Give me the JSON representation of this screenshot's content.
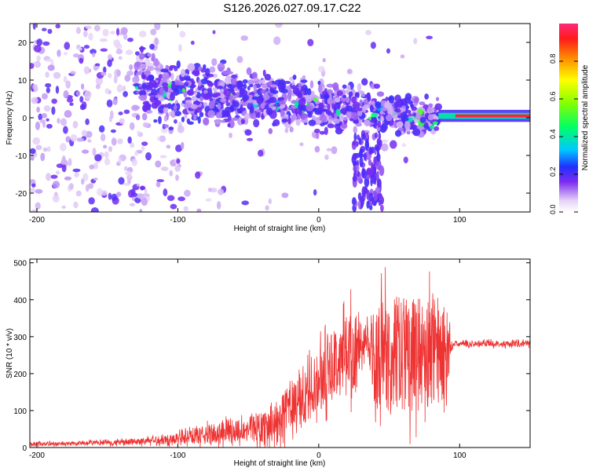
{
  "title": "S126.2026.027.09.17.C22",
  "chart_data": [
    {
      "type": "heatmap",
      "name": "spectrogram",
      "xlabel": "Height of straight line (km)",
      "ylabel": "Frequency (Hz)",
      "xlim": [
        -205,
        150
      ],
      "ylim": [
        -25,
        25
      ],
      "xticks": [
        -200,
        -100,
        0,
        100
      ],
      "yticks": [
        -20,
        -10,
        0,
        10,
        20
      ],
      "colorbar": {
        "label": "Normalized spectral amplitude",
        "range": [
          0,
          1
        ],
        "ticks": [
          0.0,
          0.2,
          0.4,
          0.6,
          0.8
        ]
      },
      "features": [
        {
          "x": [
            -205,
            -130
          ],
          "y": [
            -25,
            25
          ],
          "amplitude": 0.15,
          "description": "diffuse broadband noise"
        },
        {
          "x": [
            -130,
            85
          ],
          "freq_start": 8,
          "freq_end": 0,
          "amplitude": 0.3,
          "description": "drifting band converging to 0 Hz"
        },
        {
          "x": [
            85,
            150
          ],
          "freq": 0.5,
          "amplitude": 0.95,
          "description": "narrow carrier line"
        }
      ]
    },
    {
      "type": "line",
      "name": "snr",
      "xlabel": "Height of straight line (km)",
      "ylabel": "SNR (10 * v/v)",
      "xlim": [
        -205,
        150
      ],
      "ylim": [
        0,
        510
      ],
      "xticks": [
        -200,
        -100,
        0,
        100
      ],
      "yticks": [
        0,
        100,
        200,
        300,
        400,
        500
      ],
      "color": "#ee3333",
      "series": [
        {
          "name": "SNR",
          "x": [
            -205,
            -180,
            -160,
            -140,
            -120,
            -100,
            -90,
            -80,
            -70,
            -60,
            -50,
            -40,
            -30,
            -25,
            -20,
            -15,
            -10,
            -5,
            0,
            5,
            10,
            15,
            20,
            25,
            30,
            35,
            40,
            45,
            50,
            55,
            60,
            65,
            70,
            75,
            80,
            85,
            90,
            95,
            100,
            110,
            120,
            130,
            140,
            150
          ],
          "y": [
            10,
            10,
            12,
            14,
            18,
            25,
            30,
            35,
            40,
            45,
            50,
            55,
            65,
            90,
            110,
            120,
            130,
            160,
            180,
            200,
            220,
            240,
            260,
            270,
            280,
            290,
            230,
            250,
            260,
            250,
            260,
            250,
            255,
            250,
            260,
            255,
            250,
            280,
            280,
            280,
            282,
            280,
            280,
            282
          ],
          "spread": [
            5,
            5,
            6,
            7,
            10,
            15,
            20,
            25,
            30,
            30,
            35,
            40,
            50,
            60,
            60,
            70,
            75,
            75,
            80,
            90,
            90,
            100,
            110,
            110,
            60,
            40,
            140,
            150,
            160,
            160,
            160,
            155,
            155,
            150,
            150,
            140,
            130,
            8,
            8,
            8,
            8,
            8,
            8,
            8
          ],
          "max": 500
        }
      ]
    }
  ]
}
